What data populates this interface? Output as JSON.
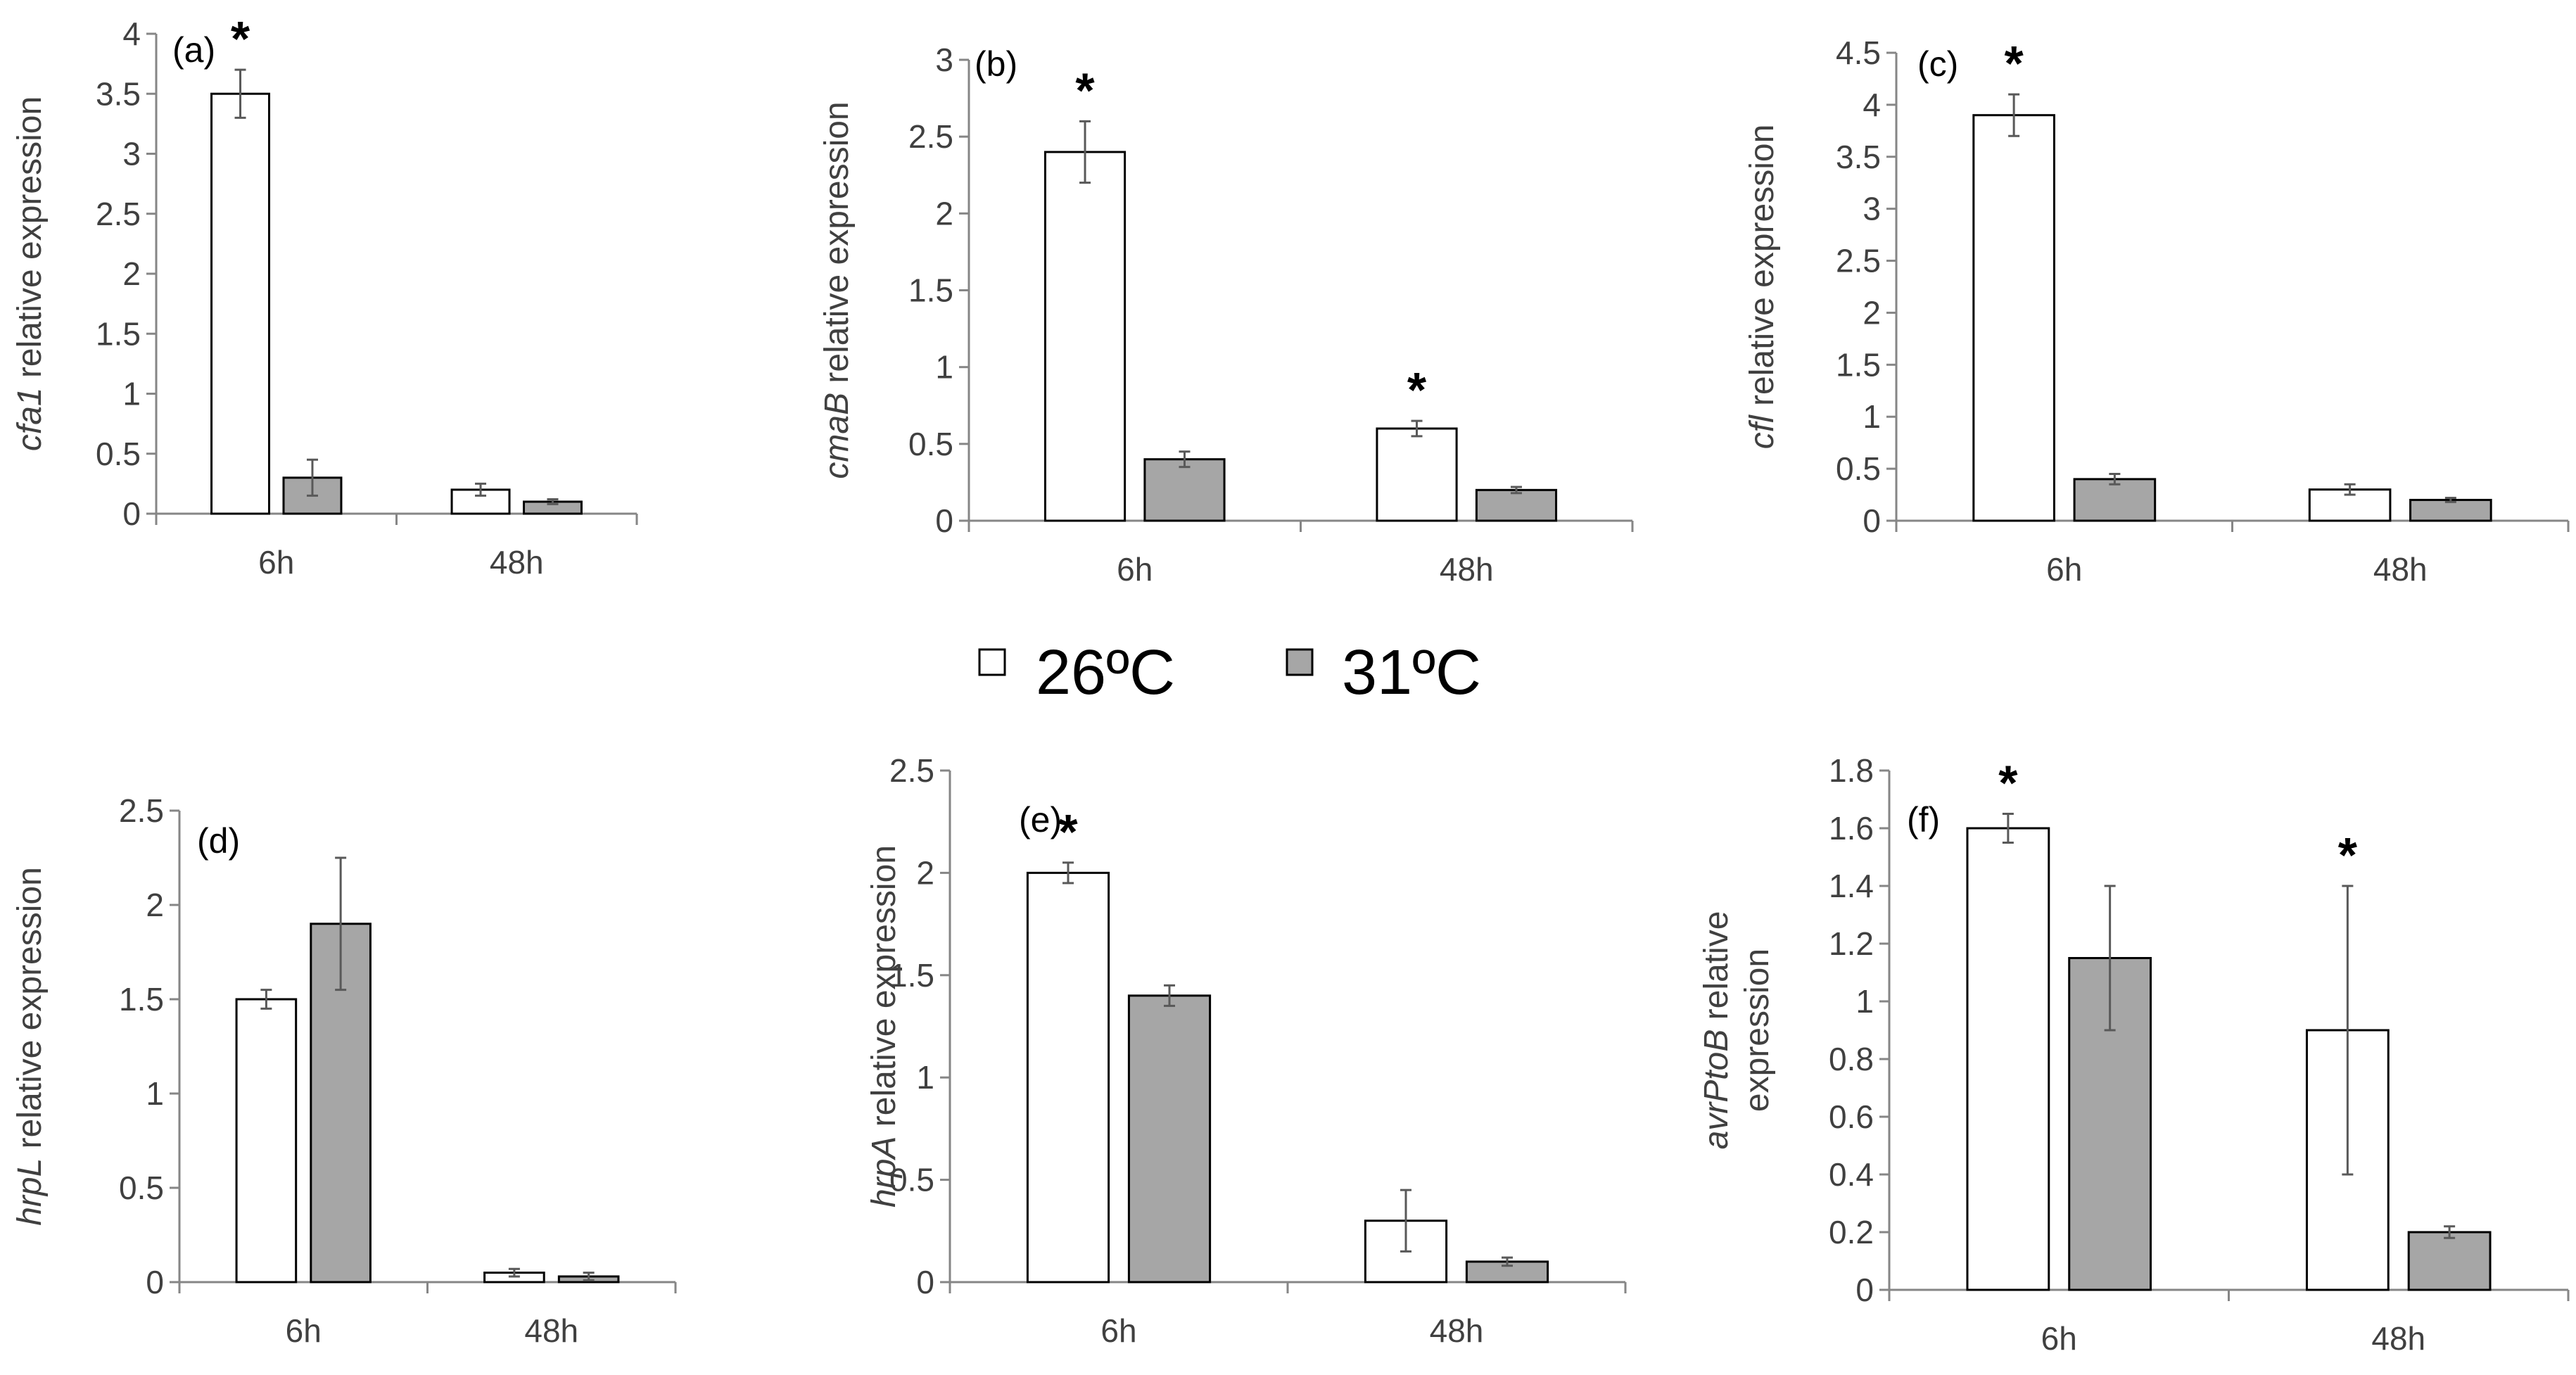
{
  "colors": {
    "bar_26": "#ffffff",
    "bar_31": "#a6a6a6",
    "axis": "#868686",
    "error": "#595959"
  },
  "legend": {
    "items": [
      {
        "label": "26ºC",
        "color": "#ffffff"
      },
      {
        "label": "31ºC",
        "color": "#a6a6a6"
      }
    ]
  },
  "chart_data": [
    {
      "type": "bar",
      "panel": "(a)",
      "gene": "cfa1",
      "ylabel_suffix": " relative expression",
      "categories": [
        "6h",
        "48h"
      ],
      "ylim": [
        0,
        4
      ],
      "yticks": [
        "0",
        "0.5",
        "1",
        "1.5",
        "2",
        "2.5",
        "3",
        "3.5",
        "4"
      ],
      "series": [
        {
          "name": "26ºC",
          "values": [
            3.5,
            0.2
          ],
          "errors": [
            0.2,
            0.05
          ]
        },
        {
          "name": "31ºC",
          "values": [
            0.3,
            0.1
          ],
          "errors": [
            0.15,
            0.02
          ]
        }
      ],
      "significance": [
        "*",
        ""
      ]
    },
    {
      "type": "bar",
      "panel": "(b)",
      "gene": "cmaB",
      "ylabel_suffix": " relative expression",
      "categories": [
        "6h",
        "48h"
      ],
      "ylim": [
        0,
        3
      ],
      "yticks": [
        "0",
        "0.5",
        "1",
        "1.5",
        "2",
        "2.5",
        "3"
      ],
      "series": [
        {
          "name": "26ºC",
          "values": [
            2.4,
            0.6
          ],
          "errors": [
            0.2,
            0.05
          ]
        },
        {
          "name": "31ºC",
          "values": [
            0.4,
            0.2
          ],
          "errors": [
            0.05,
            0.02
          ]
        }
      ],
      "significance": [
        "*",
        "*"
      ]
    },
    {
      "type": "bar",
      "panel": "(c)",
      "gene": "cfl",
      "ylabel_suffix": " relative expression",
      "categories": [
        "6h",
        "48h"
      ],
      "ylim": [
        0,
        4.5
      ],
      "yticks": [
        "0",
        "0.5",
        "1",
        "1.5",
        "2",
        "2.5",
        "3",
        "3.5",
        "4",
        "4.5"
      ],
      "series": [
        {
          "name": "26ºC",
          "values": [
            3.9,
            0.3
          ],
          "errors": [
            0.2,
            0.05
          ]
        },
        {
          "name": "31ºC",
          "values": [
            0.4,
            0.2
          ],
          "errors": [
            0.05,
            0.02
          ]
        }
      ],
      "significance": [
        "*",
        ""
      ]
    },
    {
      "type": "bar",
      "panel": "(d)",
      "gene": "hrpL",
      "ylabel_suffix": " relative expression",
      "categories": [
        "6h",
        "48h"
      ],
      "ylim": [
        0,
        2.5
      ],
      "yticks": [
        "0",
        "0.5",
        "1",
        "1.5",
        "2",
        "2.5"
      ],
      "series": [
        {
          "name": "26ºC",
          "values": [
            1.5,
            0.05
          ],
          "errors": [
            0.05,
            0.02
          ]
        },
        {
          "name": "31ºC",
          "values": [
            1.9,
            0.03
          ],
          "errors": [
            0.35,
            0.02
          ]
        }
      ],
      "significance": [
        "",
        ""
      ]
    },
    {
      "type": "bar",
      "panel": "(e)",
      "gene": "hrpA",
      "ylabel_suffix": " relative expression",
      "categories": [
        "6h",
        "48h"
      ],
      "ylim": [
        0,
        2.5
      ],
      "yticks": [
        "0",
        "0.5",
        "1",
        "1.5",
        "2",
        "2.5"
      ],
      "series": [
        {
          "name": "26ºC",
          "values": [
            2.0,
            0.3
          ],
          "errors": [
            0.05,
            0.15
          ]
        },
        {
          "name": "31ºC",
          "values": [
            1.4,
            0.1
          ],
          "errors": [
            0.05,
            0.02
          ]
        }
      ],
      "significance": [
        "*",
        ""
      ]
    },
    {
      "type": "bar",
      "panel": "(f)",
      "gene": "avrPtoB",
      "ylabel_suffix": " relative",
      "ylabel_line2": "expression",
      "categories": [
        "6h",
        "48h"
      ],
      "ylim": [
        0,
        1.8
      ],
      "yticks": [
        "0",
        "0.2",
        "0.4",
        "0.6",
        "0.8",
        "1",
        "1.2",
        "1.4",
        "1.6",
        "1.8"
      ],
      "series": [
        {
          "name": "26ºC",
          "values": [
            1.6,
            0.9
          ],
          "errors": [
            0.05,
            0.5
          ]
        },
        {
          "name": "31ºC",
          "values": [
            1.15,
            0.2
          ],
          "errors": [
            0.25,
            0.02
          ]
        }
      ],
      "significance": [
        "*",
        "*"
      ]
    }
  ]
}
